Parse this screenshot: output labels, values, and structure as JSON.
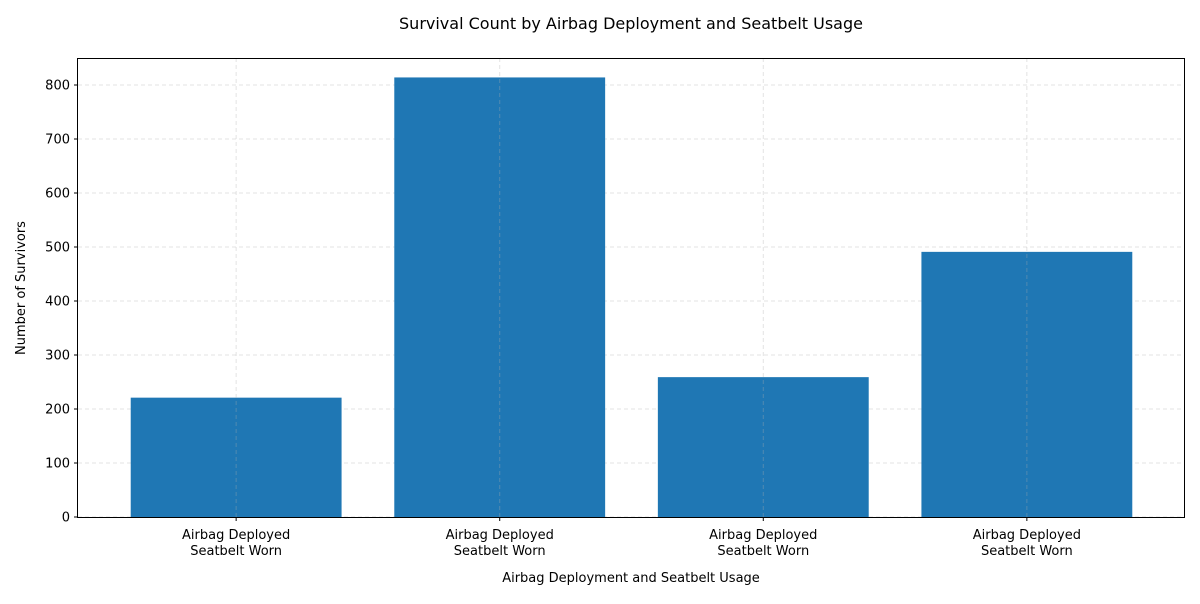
{
  "chart_data": {
    "type": "bar",
    "title": "Survival Count by Airbag Deployment and Seatbelt Usage",
    "xlabel": "Airbag Deployment and Seatbelt Usage",
    "ylabel": "Number of Survivors",
    "categories": [
      [
        "Airbag Deployed",
        "Seatbelt Worn"
      ],
      [
        "Airbag Deployed",
        "Seatbelt Worn"
      ],
      [
        "Airbag Deployed",
        "Seatbelt Worn"
      ],
      [
        "Airbag Deployed",
        "Seatbelt Worn"
      ]
    ],
    "values": [
      221,
      814,
      259,
      491
    ],
    "ylim": [
      0,
      850
    ],
    "yticks": [
      0,
      100,
      200,
      300,
      400,
      500,
      600,
      700,
      800
    ],
    "grid": true,
    "legend": "none",
    "bar_color": "#1f77b4"
  }
}
